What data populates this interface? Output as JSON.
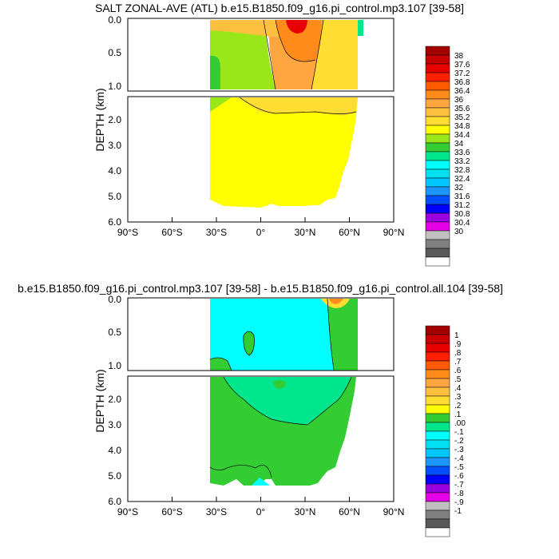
{
  "chart_data": [
    {
      "type": "contour",
      "title": "SALT ZONAL-AVE (ATL) b.e15.B1850.f09_g16.pi_control.mp3.107 [39-58]",
      "ylabel": "DEPTH (km)",
      "x_ticks": [
        "90°S",
        "60°S",
        "30°S",
        "0°",
        "30°N",
        "60°N",
        "90°N"
      ],
      "xlim": [
        -90,
        90
      ],
      "upper_y_ticks": [
        "0.0",
        "0.5",
        "1.0"
      ],
      "lower_y_ticks": [
        "2.0",
        "3.0",
        "4.0",
        "5.0",
        "6.0"
      ],
      "ylim_upper_km": [
        0,
        1.1
      ],
      "ylim_lower_km": [
        1.1,
        6.0
      ],
      "colorbar_labels": [
        "38",
        "37.6",
        "37.2",
        "36.8",
        "36.4",
        "36",
        "35.6",
        "35.2",
        "34.8",
        "34.4",
        "34",
        "33.6",
        "33.2",
        "32.8",
        "32.4",
        "32",
        "31.6",
        "31.2",
        "30.8",
        "30.4",
        "30"
      ],
      "colorbar_colors": [
        "#a50000",
        "#c80000",
        "#e80000",
        "#ff2000",
        "#ff5a00",
        "#ff8c1a",
        "#ffa640",
        "#ffc040",
        "#ffdd33",
        "#ffff00",
        "#99e619",
        "#33cc33",
        "#00e68c",
        "#00ffff",
        "#00e0f0",
        "#00c8ff",
        "#1e96ff",
        "#0050ff",
        "#0000ff",
        "#9a00e0",
        "#e600e6",
        "#bfbfbf",
        "#808080",
        "#595959",
        "#ffffff"
      ]
    },
    {
      "type": "contour",
      "title": "b.e15.B1850.f09_g16.pi_control.mp3.107 [39-58] - b.e15.B1850.f09_g16.pi_control.all.104 [39-58]",
      "ylabel": "DEPTH (km)",
      "x_ticks": [
        "90°S",
        "60°S",
        "30°S",
        "0°",
        "30°N",
        "60°N",
        "90°N"
      ],
      "xlim": [
        -90,
        90
      ],
      "upper_y_ticks": [
        "0.0",
        "0.5",
        "1.0"
      ],
      "lower_y_ticks": [
        "2.0",
        "3.0",
        "4.0",
        "5.0",
        "6.0"
      ],
      "ylim_upper_km": [
        0,
        1.1
      ],
      "ylim_lower_km": [
        1.1,
        6.0
      ],
      "colorbar_labels": [
        "1",
        ".9",
        ".8",
        ".7",
        ".6",
        ".5",
        ".4",
        ".3",
        ".2",
        ".1",
        ".00",
        "-.1",
        "-.2",
        "-.3",
        "-.4",
        "-.5",
        "-.6",
        "-.7",
        "-.8",
        "-.9",
        "-1"
      ],
      "colorbar_colors": [
        "#a50000",
        "#c80000",
        "#e80000",
        "#ff2000",
        "#ff5a00",
        "#ff8c1a",
        "#ffa640",
        "#ffc040",
        "#ffdd33",
        "#ffff00",
        "#33cc33",
        "#00e68c",
        "#00ffff",
        "#00e0f0",
        "#00c8ff",
        "#1e96ff",
        "#0050ff",
        "#0000ff",
        "#9a00e0",
        "#e600e6",
        "#bfbfbf",
        "#808080",
        "#595959",
        "#ffffff"
      ]
    }
  ]
}
